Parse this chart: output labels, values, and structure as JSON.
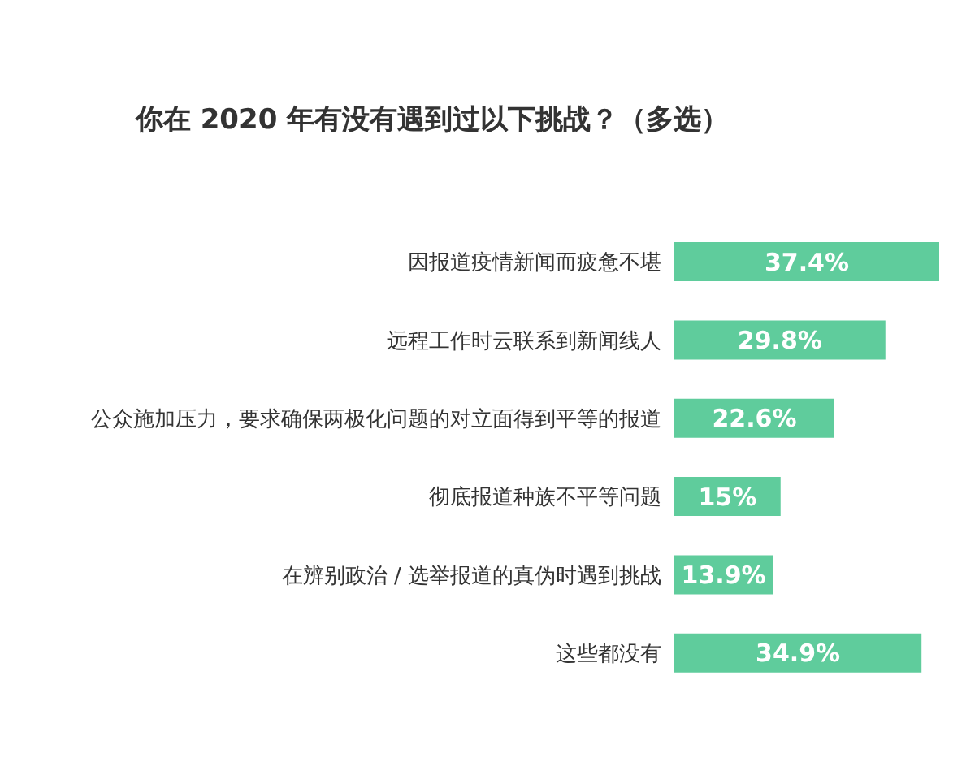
{
  "chart_data": {
    "type": "bar",
    "orientation": "horizontal",
    "title": "你在 2020 年有没有遇到过以下挑战？（多选）",
    "categories": [
      "因报道疫情新闻而疲惫不堪",
      "远程工作时云联系到新闻线人",
      "公众施加压力，要求确保两极化问题的对立面得到平等的报道",
      "彻底报道种族不平等问题",
      "在辨别政治 / 选举报道的真伪时遇到挑战",
      "这些都没有"
    ],
    "values": [
      37.4,
      29.8,
      22.6,
      15,
      13.9,
      34.9
    ],
    "value_labels": [
      "37.4%",
      "29.8%",
      "22.6%",
      "15%",
      "13.9%",
      "34.9%"
    ],
    "color": "#5fcc9c"
  }
}
